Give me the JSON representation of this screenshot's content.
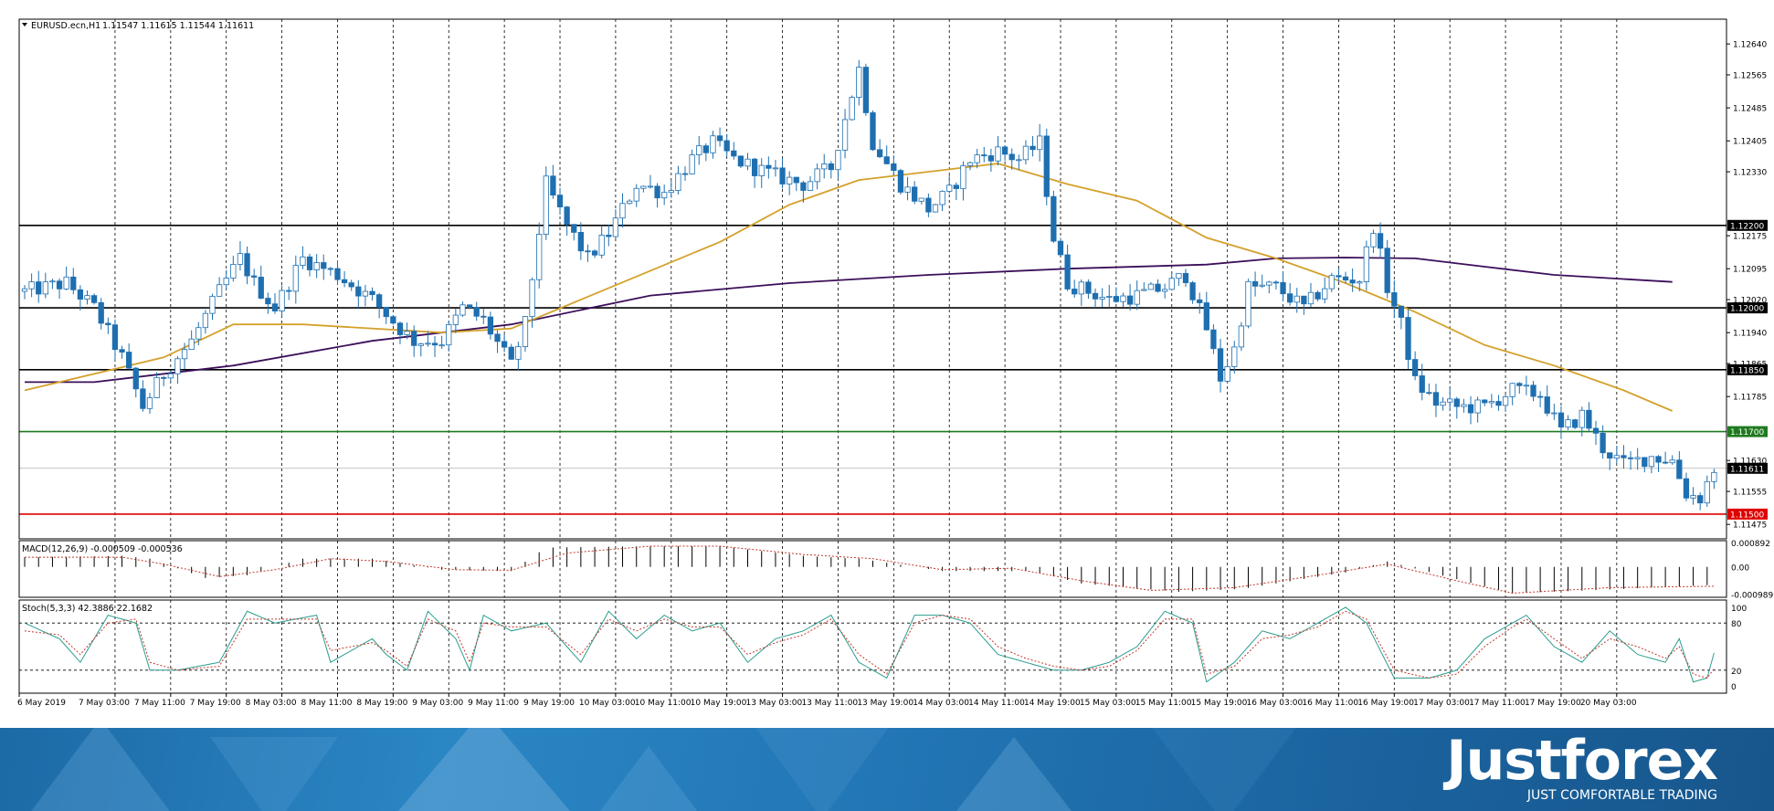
{
  "chart_data": {
    "type": "candlestick",
    "symbol_header": "EURUSD.ecn,H1",
    "ohlc_header": "1.11547 1.11615 1.11544 1.11611",
    "price_axis": {
      "range": [
        1.1144,
        1.127
      ],
      "ticks": [
        "1.12640",
        "1.12565",
        "1.12485",
        "1.12405",
        "1.12330",
        "1.12175",
        "1.12095",
        "1.12020",
        "1.11940",
        "1.11865",
        "1.11785",
        "1.11630",
        "1.11555",
        "1.11475"
      ]
    },
    "levels": [
      {
        "price": 1.122,
        "label": "1.12200",
        "color": "#000000"
      },
      {
        "price": 1.12,
        "label": "1.12000",
        "color": "#000000"
      },
      {
        "price": 1.1185,
        "label": "1.11850",
        "color": "#000000"
      },
      {
        "price": 1.117,
        "label": "1.11700",
        "color": "#1f7a1f"
      },
      {
        "price": 1.115,
        "label": "1.11500",
        "color": "#e00000"
      }
    ],
    "current_price": {
      "price": 1.11611,
      "label": "1.11611"
    },
    "time_labels": [
      "6 May 2019",
      "7 May 03:00",
      "7 May 11:00",
      "7 May 19:00",
      "8 May 03:00",
      "8 May 11:00",
      "8 May 19:00",
      "9 May 03:00",
      "9 May 11:00",
      "9 May 19:00",
      "10 May 03:00",
      "10 May 11:00",
      "10 May 19:00",
      "13 May 03:00",
      "13 May 11:00",
      "13 May 19:00",
      "14 May 03:00",
      "14 May 11:00",
      "14 May 19:00",
      "15 May 03:00",
      "15 May 11:00",
      "15 May 19:00",
      "16 May 03:00",
      "16 May 11:00",
      "16 May 19:00",
      "17 May 03:00",
      "17 May 11:00",
      "17 May 19:00",
      "20 May 03:00"
    ],
    "close_path": [
      [
        0,
        1.1204
      ],
      [
        6,
        1.1206
      ],
      [
        10,
        1.12
      ],
      [
        14,
        1.1188
      ],
      [
        17,
        1.1176
      ],
      [
        20,
        1.1184
      ],
      [
        24,
        1.1192
      ],
      [
        28,
        1.1204
      ],
      [
        31,
        1.1212
      ],
      [
        33,
        1.1206
      ],
      [
        36,
        1.12
      ],
      [
        40,
        1.1212
      ],
      [
        45,
        1.1208
      ],
      [
        50,
        1.1202
      ],
      [
        54,
        1.1195
      ],
      [
        56,
        1.1192
      ],
      [
        60,
        1.1192
      ],
      [
        63,
        1.12
      ],
      [
        66,
        1.1197
      ],
      [
        70,
        1.1186
      ],
      [
        72,
        1.1196
      ],
      [
        75,
        1.123
      ],
      [
        78,
        1.122
      ],
      [
        81,
        1.1212
      ],
      [
        84,
        1.1218
      ],
      [
        88,
        1.123
      ],
      [
        92,
        1.1228
      ],
      [
        96,
        1.1236
      ],
      [
        99,
        1.124
      ],
      [
        102,
        1.1236
      ],
      [
        105,
        1.1234
      ],
      [
        108,
        1.1232
      ],
      [
        112,
        1.123
      ],
      [
        116,
        1.1234
      ],
      [
        120,
        1.1258
      ],
      [
        122,
        1.124
      ],
      [
        126,
        1.123
      ],
      [
        130,
        1.1224
      ],
      [
        133,
        1.1228
      ],
      [
        136,
        1.1236
      ],
      [
        140,
        1.1238
      ],
      [
        143,
        1.1236
      ],
      [
        146,
        1.124
      ],
      [
        148,
        1.1217
      ],
      [
        150,
        1.1206
      ],
      [
        153,
        1.1204
      ],
      [
        156,
        1.1202
      ],
      [
        160,
        1.1203
      ],
      [
        164,
        1.1205
      ],
      [
        167,
        1.1208
      ],
      [
        170,
        1.1195
      ],
      [
        172,
        1.1183
      ],
      [
        174,
        1.119
      ],
      [
        176,
        1.1205
      ],
      [
        180,
        1.1205
      ],
      [
        184,
        1.12
      ],
      [
        188,
        1.1207
      ],
      [
        192,
        1.1207
      ],
      [
        194,
        1.122
      ],
      [
        196,
        1.1205
      ],
      [
        198,
        1.1196
      ],
      [
        200,
        1.1182
      ],
      [
        203,
        1.1177
      ],
      [
        206,
        1.1176
      ],
      [
        210,
        1.1176
      ],
      [
        214,
        1.118
      ],
      [
        218,
        1.1179
      ],
      [
        221,
        1.117
      ],
      [
        224,
        1.1174
      ],
      [
        227,
        1.1166
      ],
      [
        230,
        1.1162
      ],
      [
        234,
        1.1164
      ],
      [
        237,
        1.1163
      ],
      [
        239,
        1.1155
      ],
      [
        241,
        1.1154
      ],
      [
        243,
        1.1161
      ]
    ],
    "ma_fast": [
      [
        0,
        1.118
      ],
      [
        20,
        1.1188
      ],
      [
        30,
        1.1196
      ],
      [
        40,
        1.1196
      ],
      [
        60,
        1.1194
      ],
      [
        70,
        1.1195
      ],
      [
        80,
        1.1202
      ],
      [
        100,
        1.1216
      ],
      [
        110,
        1.1225
      ],
      [
        120,
        1.1231
      ],
      [
        140,
        1.1235
      ],
      [
        150,
        1.123
      ],
      [
        160,
        1.1226
      ],
      [
        170,
        1.1217
      ],
      [
        180,
        1.1212
      ],
      [
        190,
        1.1206
      ],
      [
        200,
        1.1199
      ],
      [
        210,
        1.1191
      ],
      [
        220,
        1.1186
      ],
      [
        230,
        1.118
      ],
      [
        237,
        1.1175
      ]
    ],
    "ma_slow": [
      [
        0,
        1.1182
      ],
      [
        10,
        1.1182
      ],
      [
        30,
        1.1186
      ],
      [
        50,
        1.1192
      ],
      [
        70,
        1.1196
      ],
      [
        90,
        1.1203
      ],
      [
        110,
        1.1206
      ],
      [
        130,
        1.1208
      ],
      [
        150,
        1.12095
      ],
      [
        170,
        1.12105
      ],
      [
        180,
        1.1212
      ],
      [
        190,
        1.12122
      ],
      [
        200,
        1.1212
      ],
      [
        210,
        1.121
      ],
      [
        220,
        1.1208
      ],
      [
        237,
        1.12063
      ]
    ],
    "macd": {
      "label": "MACD(12,26,9) -0.000509 -0.000536",
      "axis_ticks": [
        "0.000892",
        "0.00",
        "-0.000989"
      ],
      "range": [
        -0.0011,
        0.00095
      ],
      "histogram": [
        [
          0,
          0.00035
        ],
        [
          14,
          0.0004
        ],
        [
          18,
          0.0003
        ],
        [
          26,
          -0.0004
        ],
        [
          32,
          -0.0003
        ],
        [
          40,
          0.0003
        ],
        [
          50,
          0.0003
        ],
        [
          60,
          -0.0001
        ],
        [
          70,
          -0.00015
        ],
        [
          75,
          0.0007
        ],
        [
          90,
          0.00075
        ],
        [
          100,
          0.00075
        ],
        [
          112,
          0.0004
        ],
        [
          120,
          0.0003
        ],
        [
          132,
          -0.00015
        ],
        [
          145,
          -0.00015
        ],
        [
          152,
          -0.0006
        ],
        [
          166,
          -0.0009
        ],
        [
          175,
          -0.0008
        ],
        [
          190,
          -0.0002
        ],
        [
          196,
          0.0002
        ],
        [
          210,
          -0.0007
        ],
        [
          214,
          -0.00095
        ],
        [
          225,
          -0.00085
        ],
        [
          243,
          -0.00065
        ]
      ],
      "signal": [
        [
          0,
          0.00035
        ],
        [
          14,
          0.00035
        ],
        [
          20,
          0.0001
        ],
        [
          28,
          -0.00035
        ],
        [
          36,
          -0.0001
        ],
        [
          44,
          0.0003
        ],
        [
          52,
          0.0002
        ],
        [
          62,
          -0.0001
        ],
        [
          70,
          -0.00012
        ],
        [
          78,
          0.0005
        ],
        [
          90,
          0.00075
        ],
        [
          100,
          0.00075
        ],
        [
          112,
          0.00045
        ],
        [
          122,
          0.0003
        ],
        [
          132,
          -0.0001
        ],
        [
          142,
          -5e-05
        ],
        [
          152,
          -0.0005
        ],
        [
          162,
          -0.00085
        ],
        [
          174,
          -0.00075
        ],
        [
          186,
          -0.0003
        ],
        [
          196,
          0.0001
        ],
        [
          206,
          -0.0005
        ],
        [
          214,
          -0.00095
        ],
        [
          228,
          -0.00075
        ],
        [
          243,
          -0.0007
        ]
      ]
    },
    "stochastic": {
      "label": "Stoch(5,3,3) 42.3886 22.1682",
      "axis_ticks": [
        "100",
        "80",
        "20",
        "0"
      ],
      "levels": [
        80,
        20
      ],
      "main": [
        [
          0,
          80
        ],
        [
          5,
          60
        ],
        [
          8,
          30
        ],
        [
          12,
          90
        ],
        [
          16,
          80
        ],
        [
          18,
          20
        ],
        [
          22,
          20
        ],
        [
          28,
          30
        ],
        [
          32,
          95
        ],
        [
          36,
          80
        ],
        [
          42,
          90
        ],
        [
          44,
          30
        ],
        [
          50,
          60
        ],
        [
          52,
          40
        ],
        [
          55,
          20
        ],
        [
          58,
          95
        ],
        [
          62,
          60
        ],
        [
          64,
          20
        ],
        [
          66,
          90
        ],
        [
          70,
          70
        ],
        [
          75,
          80
        ],
        [
          80,
          30
        ],
        [
          84,
          95
        ],
        [
          88,
          60
        ],
        [
          92,
          90
        ],
        [
          96,
          70
        ],
        [
          100,
          80
        ],
        [
          104,
          30
        ],
        [
          108,
          60
        ],
        [
          112,
          70
        ],
        [
          116,
          90
        ],
        [
          120,
          30
        ],
        [
          124,
          10
        ],
        [
          128,
          90
        ],
        [
          132,
          90
        ],
        [
          136,
          80
        ],
        [
          140,
          40
        ],
        [
          144,
          30
        ],
        [
          148,
          20
        ],
        [
          152,
          20
        ],
        [
          156,
          30
        ],
        [
          160,
          50
        ],
        [
          164,
          95
        ],
        [
          168,
          80
        ],
        [
          170,
          5
        ],
        [
          174,
          30
        ],
        [
          178,
          70
        ],
        [
          182,
          60
        ],
        [
          186,
          80
        ],
        [
          190,
          100
        ],
        [
          193,
          80
        ],
        [
          197,
          10
        ],
        [
          202,
          10
        ],
        [
          206,
          20
        ],
        [
          210,
          60
        ],
        [
          214,
          80
        ],
        [
          216,
          90
        ],
        [
          220,
          50
        ],
        [
          224,
          30
        ],
        [
          228,
          70
        ],
        [
          232,
          40
        ],
        [
          236,
          30
        ],
        [
          238,
          60
        ],
        [
          240,
          5
        ],
        [
          242,
          10
        ],
        [
          243,
          42
        ]
      ],
      "signal": [
        [
          0,
          70
        ],
        [
          5,
          65
        ],
        [
          8,
          40
        ],
        [
          12,
          80
        ],
        [
          16,
          85
        ],
        [
          18,
          30
        ],
        [
          22,
          20
        ],
        [
          28,
          25
        ],
        [
          32,
          85
        ],
        [
          36,
          85
        ],
        [
          42,
          85
        ],
        [
          44,
          45
        ],
        [
          50,
          55
        ],
        [
          52,
          45
        ],
        [
          55,
          25
        ],
        [
          58,
          85
        ],
        [
          62,
          70
        ],
        [
          64,
          30
        ],
        [
          66,
          80
        ],
        [
          70,
          75
        ],
        [
          75,
          75
        ],
        [
          80,
          40
        ],
        [
          84,
          85
        ],
        [
          88,
          70
        ],
        [
          92,
          85
        ],
        [
          96,
          75
        ],
        [
          100,
          75
        ],
        [
          104,
          40
        ],
        [
          108,
          55
        ],
        [
          112,
          65
        ],
        [
          116,
          85
        ],
        [
          120,
          40
        ],
        [
          124,
          15
        ],
        [
          128,
          80
        ],
        [
          132,
          90
        ],
        [
          136,
          85
        ],
        [
          140,
          50
        ],
        [
          144,
          35
        ],
        [
          148,
          25
        ],
        [
          152,
          20
        ],
        [
          156,
          25
        ],
        [
          160,
          45
        ],
        [
          164,
          85
        ],
        [
          168,
          85
        ],
        [
          170,
          15
        ],
        [
          174,
          25
        ],
        [
          178,
          60
        ],
        [
          182,
          65
        ],
        [
          186,
          75
        ],
        [
          190,
          95
        ],
        [
          193,
          85
        ],
        [
          197,
          20
        ],
        [
          202,
          10
        ],
        [
          206,
          15
        ],
        [
          210,
          50
        ],
        [
          214,
          75
        ],
        [
          216,
          85
        ],
        [
          220,
          60
        ],
        [
          224,
          35
        ],
        [
          228,
          60
        ],
        [
          232,
          50
        ],
        [
          236,
          35
        ],
        [
          238,
          50
        ],
        [
          240,
          15
        ],
        [
          242,
          10
        ],
        [
          243,
          22
        ]
      ]
    },
    "colors": {
      "up_candle": "#ffffff",
      "down_candle": "#1e6fb0",
      "candle_outline": "#1e6fb0",
      "ma_fast": "#d4a12a",
      "ma_slow": "#3c0f5a",
      "macd_signal": "#c0392b",
      "stoch_main": "#2a9d8f",
      "stoch_signal": "#c0392b",
      "banner": "#2276b5"
    }
  },
  "banner": {
    "brand": "Justforex",
    "tagline": "JUST COMFORTABLE TRADING"
  }
}
